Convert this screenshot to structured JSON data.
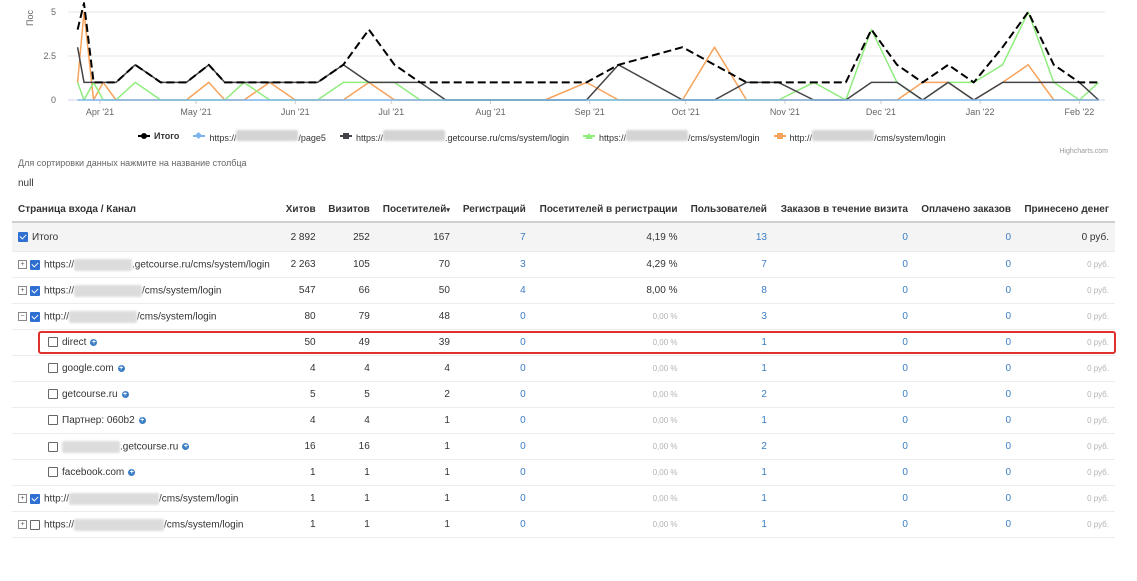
{
  "chart_data": {
    "type": "line",
    "ylabel": "Пос",
    "ylim": [
      0,
      5
    ],
    "yticks": [
      "0",
      "2.5",
      "5"
    ],
    "xticks": [
      "Apr '21",
      "May '21",
      "Jun '21",
      "Jul '21",
      "Aug '21",
      "Sep '21",
      "Oct '21",
      "Nov '21",
      "Dec '21",
      "Jan '22",
      "Feb '22"
    ],
    "x": [
      "2021-03-25",
      "2021-03-27",
      "2021-03-30",
      "2021-04-02",
      "2021-04-06",
      "2021-04-12",
      "2021-04-20",
      "2021-04-28",
      "2021-05-05",
      "2021-05-10",
      "2021-05-16",
      "2021-05-24",
      "2021-06-01",
      "2021-06-08",
      "2021-06-16",
      "2021-06-24",
      "2021-07-02",
      "2021-07-10",
      "2021-07-18",
      "2021-07-26",
      "2021-08-05",
      "2021-08-18",
      "2021-08-31",
      "2021-09-10",
      "2021-09-20",
      "2021-09-30",
      "2021-10-10",
      "2021-10-20",
      "2021-10-30",
      "2021-11-10",
      "2021-11-20",
      "2021-11-28",
      "2021-12-06",
      "2021-12-14",
      "2021-12-22",
      "2021-12-30",
      "2022-01-08",
      "2022-01-16",
      "2022-01-24",
      "2022-02-01",
      "2022-02-07"
    ],
    "series": [
      {
        "name": "Итого",
        "color": "#000000",
        "dash": true,
        "values": [
          4,
          5.5,
          1,
          1,
          1,
          2,
          1,
          1,
          2,
          1,
          1,
          1,
          1,
          1,
          2,
          4,
          2,
          1,
          1,
          1,
          1,
          1,
          1,
          2,
          2.5,
          3,
          2,
          1,
          1,
          1,
          1,
          4,
          2,
          1,
          2,
          1,
          3,
          5,
          2,
          1,
          1
        ]
      },
      {
        "name": "https://███████/page5",
        "color": "#7cb5ec",
        "values": [
          0,
          0,
          0,
          0,
          0,
          0,
          0,
          0,
          0,
          0,
          0,
          0,
          0,
          0,
          0,
          0,
          0,
          0,
          0,
          0,
          0,
          0,
          0,
          0,
          0,
          0,
          0,
          0,
          0,
          0,
          0,
          0,
          0,
          0,
          0,
          0,
          0,
          0,
          0,
          0,
          0
        ]
      },
      {
        "name": "https://███████.getcourse.ru/cms/system/login",
        "color": "#434348",
        "values": [
          3,
          1,
          1,
          1,
          1,
          2,
          1,
          1,
          2,
          1,
          1,
          1,
          1,
          1,
          2,
          1,
          1,
          1,
          0,
          0,
          0,
          0,
          0,
          2,
          1,
          0,
          0,
          1,
          1,
          0,
          0,
          1,
          1,
          0,
          1,
          0,
          1,
          1,
          1,
          1,
          0
        ]
      },
      {
        "name": "https://███████/cms/system/login",
        "color": "#90ed7d",
        "values": [
          1,
          0,
          1,
          0,
          0,
          1,
          0,
          0,
          0,
          0,
          1,
          0,
          0,
          0,
          1,
          1,
          1,
          0,
          0,
          0,
          0,
          0,
          0,
          0,
          0,
          0,
          0,
          0,
          0,
          1,
          0,
          4,
          1,
          0,
          1,
          1,
          2,
          5,
          1,
          0,
          1
        ]
      },
      {
        "name": "http://███████/cms/system/login",
        "color": "#f7a35c",
        "values": [
          1,
          5,
          0,
          1,
          0,
          0,
          0,
          0,
          1,
          0,
          0,
          1,
          0,
          0,
          0,
          1,
          0,
          0,
          0,
          0,
          0,
          0,
          1,
          0,
          0,
          0,
          3,
          0,
          0,
          0,
          0,
          0,
          0,
          1,
          1,
          0,
          1,
          2,
          0,
          0,
          0
        ]
      }
    ],
    "grid": true,
    "legend": "bottom"
  },
  "credits": "Highcharts.com",
  "hint": "Для сортировки данных нажмите на название столбца",
  "null_note": "null",
  "table": {
    "headers": [
      "Страница входа / Канал",
      "Хитов",
      "Визитов",
      "Посетителей",
      "Регистраций",
      "Посетителей в регистрации",
      "Пользователей",
      "Заказов в течение визита",
      "Оплачено заказов",
      "Принесено денег"
    ],
    "sort_arrow": "▾",
    "rows": [
      {
        "kind": "total",
        "checked": true,
        "expander": "",
        "prefix": "",
        "suffix": "Итого",
        "hits": "2 892",
        "visits": "252",
        "visitors": "167",
        "regs": "7",
        "conv": "4,19 %",
        "users": "13",
        "orders": "0",
        "paid": "0",
        "money": "0 руб."
      },
      {
        "kind": "top",
        "checked": true,
        "expander": "⊞",
        "prefix": "https://",
        "suffix": ".getcourse.ru/cms/system/login",
        "hits": "2 263",
        "visits": "105",
        "visitors": "70",
        "regs": "3",
        "conv": "4,29 %",
        "users": "7",
        "orders": "0",
        "paid": "0",
        "money": "0 руб."
      },
      {
        "kind": "top",
        "checked": true,
        "expander": "⊞",
        "prefix": "https://",
        "suffix": "/cms/system/login",
        "hits": "547",
        "visits": "66",
        "visitors": "50",
        "regs": "4",
        "conv": "8,00 %",
        "users": "8",
        "orders": "0",
        "paid": "0",
        "money": "0 руб."
      },
      {
        "kind": "top",
        "checked": true,
        "expander": "⊟",
        "prefix": "http://",
        "suffix": "/cms/system/login",
        "hits": "80",
        "visits": "79",
        "visitors": "48",
        "regs": "0",
        "conv": "0,00 %",
        "users": "3",
        "orders": "0",
        "paid": "0",
        "money": "0 руб."
      },
      {
        "kind": "sub",
        "checked": false,
        "expander": "",
        "prefix": "",
        "suffix": "direct",
        "hits": "50",
        "visits": "49",
        "visitors": "39",
        "regs": "0",
        "conv": "0,00 %",
        "users": "1",
        "orders": "0",
        "paid": "0",
        "money": "0 руб."
      },
      {
        "kind": "sub",
        "checked": false,
        "expander": "",
        "prefix": "",
        "suffix": "google.com",
        "hits": "4",
        "visits": "4",
        "visitors": "4",
        "regs": "0",
        "conv": "0,00 %",
        "users": "1",
        "orders": "0",
        "paid": "0",
        "money": "0 руб."
      },
      {
        "kind": "sub",
        "checked": false,
        "expander": "",
        "prefix": "",
        "suffix": "getcourse.ru",
        "hits": "5",
        "visits": "5",
        "visitors": "2",
        "regs": "0",
        "conv": "0,00 %",
        "users": "2",
        "orders": "0",
        "paid": "0",
        "money": "0 руб."
      },
      {
        "kind": "sub",
        "checked": false,
        "expander": "",
        "prefix": "",
        "suffix": "Партнер: 060b2",
        "hits": "4",
        "visits": "4",
        "visitors": "1",
        "regs": "0",
        "conv": "0,00 %",
        "users": "1",
        "orders": "0",
        "paid": "0",
        "money": "0 руб."
      },
      {
        "kind": "sub",
        "checked": false,
        "expander": "",
        "prefix": "",
        "suffix": ".getcourse.ru",
        "blurfirst": true,
        "hits": "16",
        "visits": "16",
        "visitors": "1",
        "regs": "0",
        "conv": "0,00 %",
        "users": "2",
        "orders": "0",
        "paid": "0",
        "money": "0 руб."
      },
      {
        "kind": "sub",
        "checked": false,
        "expander": "",
        "prefix": "",
        "suffix": "facebook.com",
        "hits": "1",
        "visits": "1",
        "visitors": "1",
        "regs": "0",
        "conv": "0,00 %",
        "users": "1",
        "orders": "0",
        "paid": "0",
        "money": "0 руб."
      },
      {
        "kind": "top",
        "checked": true,
        "expander": "⊞",
        "prefix": "http://",
        "suffix": "/cms/system/login",
        "hits": "1",
        "visits": "1",
        "visitors": "1",
        "regs": "0",
        "conv": "0,00 %",
        "users": "1",
        "orders": "0",
        "paid": "0",
        "money": "0 руб."
      },
      {
        "kind": "top",
        "checked": false,
        "expander": "⊞",
        "prefix": "https://",
        "suffix": "/cms/system/login",
        "hits": "1",
        "visits": "1",
        "visitors": "1",
        "regs": "0",
        "conv": "0,00 %",
        "users": "1",
        "orders": "0",
        "paid": "0",
        "money": "0 руб."
      }
    ]
  }
}
